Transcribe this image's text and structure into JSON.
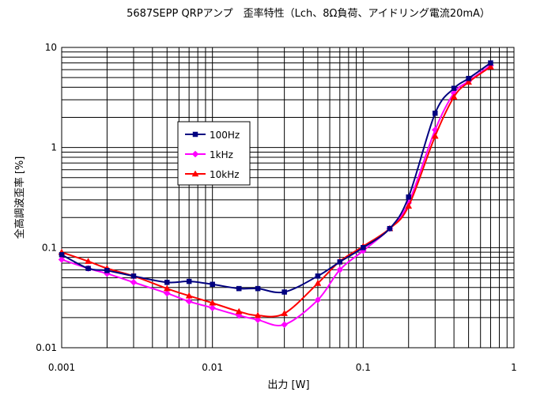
{
  "chart_data": {
    "type": "line",
    "title": "5687SEPP QRPアンプ　歪率特性（Lch、8Ω負荷、アイドリング電流20mA）",
    "xlabel": "出力 [W]",
    "ylabel": "全高調波歪率 [%]",
    "x_scale": "log",
    "y_scale": "log",
    "xlim": [
      0.001,
      1
    ],
    "ylim": [
      0.01,
      10
    ],
    "grid": true,
    "legend_position": "left-center",
    "x_ticks": [
      "0.001",
      "0.01",
      "0.1",
      "1"
    ],
    "y_ticks": [
      "0.01",
      "0.1",
      "1",
      "10"
    ],
    "series": [
      {
        "name": "100Hz",
        "color": "#000080",
        "marker": "square",
        "x": [
          0.001,
          0.0015,
          0.002,
          0.003,
          0.005,
          0.007,
          0.01,
          0.015,
          0.02,
          0.03,
          0.05,
          0.07,
          0.1,
          0.15,
          0.2,
          0.3,
          0.4,
          0.5,
          0.7
        ],
        "y": [
          0.085,
          0.062,
          0.059,
          0.052,
          0.045,
          0.046,
          0.043,
          0.039,
          0.039,
          0.036,
          0.052,
          0.072,
          0.1,
          0.155,
          0.32,
          2.2,
          3.9,
          4.9,
          7.0
        ]
      },
      {
        "name": "1kHz",
        "color": "#ff00ff",
        "marker": "diamond",
        "x": [
          0.001,
          0.0015,
          0.002,
          0.003,
          0.005,
          0.007,
          0.01,
          0.015,
          0.02,
          0.03,
          0.05,
          0.07,
          0.1,
          0.15,
          0.2,
          0.3,
          0.4,
          0.5,
          0.7
        ],
        "y": [
          0.076,
          0.062,
          0.055,
          0.045,
          0.035,
          0.029,
          0.025,
          0.021,
          0.019,
          0.017,
          0.03,
          0.06,
          0.093,
          0.155,
          0.28,
          1.5,
          3.5,
          4.6,
          6.6
        ]
      },
      {
        "name": "10kHz",
        "color": "#ff0000",
        "marker": "triangle",
        "x": [
          0.001,
          0.0015,
          0.002,
          0.003,
          0.005,
          0.007,
          0.01,
          0.015,
          0.02,
          0.03,
          0.05,
          0.07,
          0.1,
          0.15,
          0.2,
          0.3,
          0.4,
          0.5,
          0.7
        ],
        "y": [
          0.09,
          0.073,
          0.062,
          0.052,
          0.039,
          0.033,
          0.028,
          0.023,
          0.021,
          0.022,
          0.044,
          0.073,
          0.103,
          0.155,
          0.26,
          1.3,
          3.2,
          4.5,
          6.4
        ]
      }
    ]
  }
}
